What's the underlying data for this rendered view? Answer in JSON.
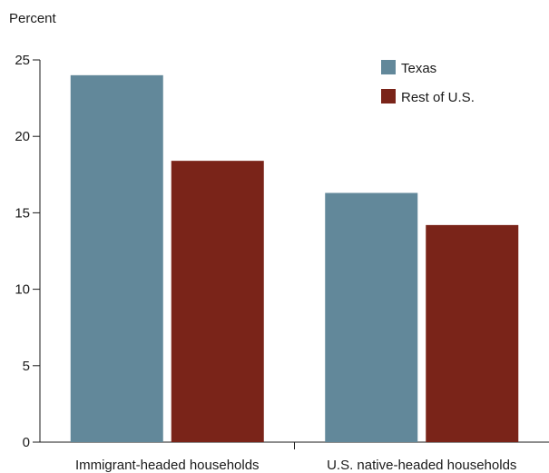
{
  "chart_data": {
    "type": "bar",
    "title": "",
    "xlabel": "",
    "ylabel": "Percent",
    "ylim": [
      0,
      25
    ],
    "yticks": [
      0,
      5,
      10,
      15,
      20,
      25
    ],
    "categories": [
      "Immigrant-headed households",
      "U.S. native-headed households"
    ],
    "series": [
      {
        "name": "Texas",
        "values": [
          24.0,
          16.3
        ],
        "color": "#62889a"
      },
      {
        "name": "Rest of U.S.",
        "values": [
          18.4,
          14.2
        ],
        "color": "#7a2419"
      }
    ],
    "legend_position": "top-right",
    "grid": false
  }
}
